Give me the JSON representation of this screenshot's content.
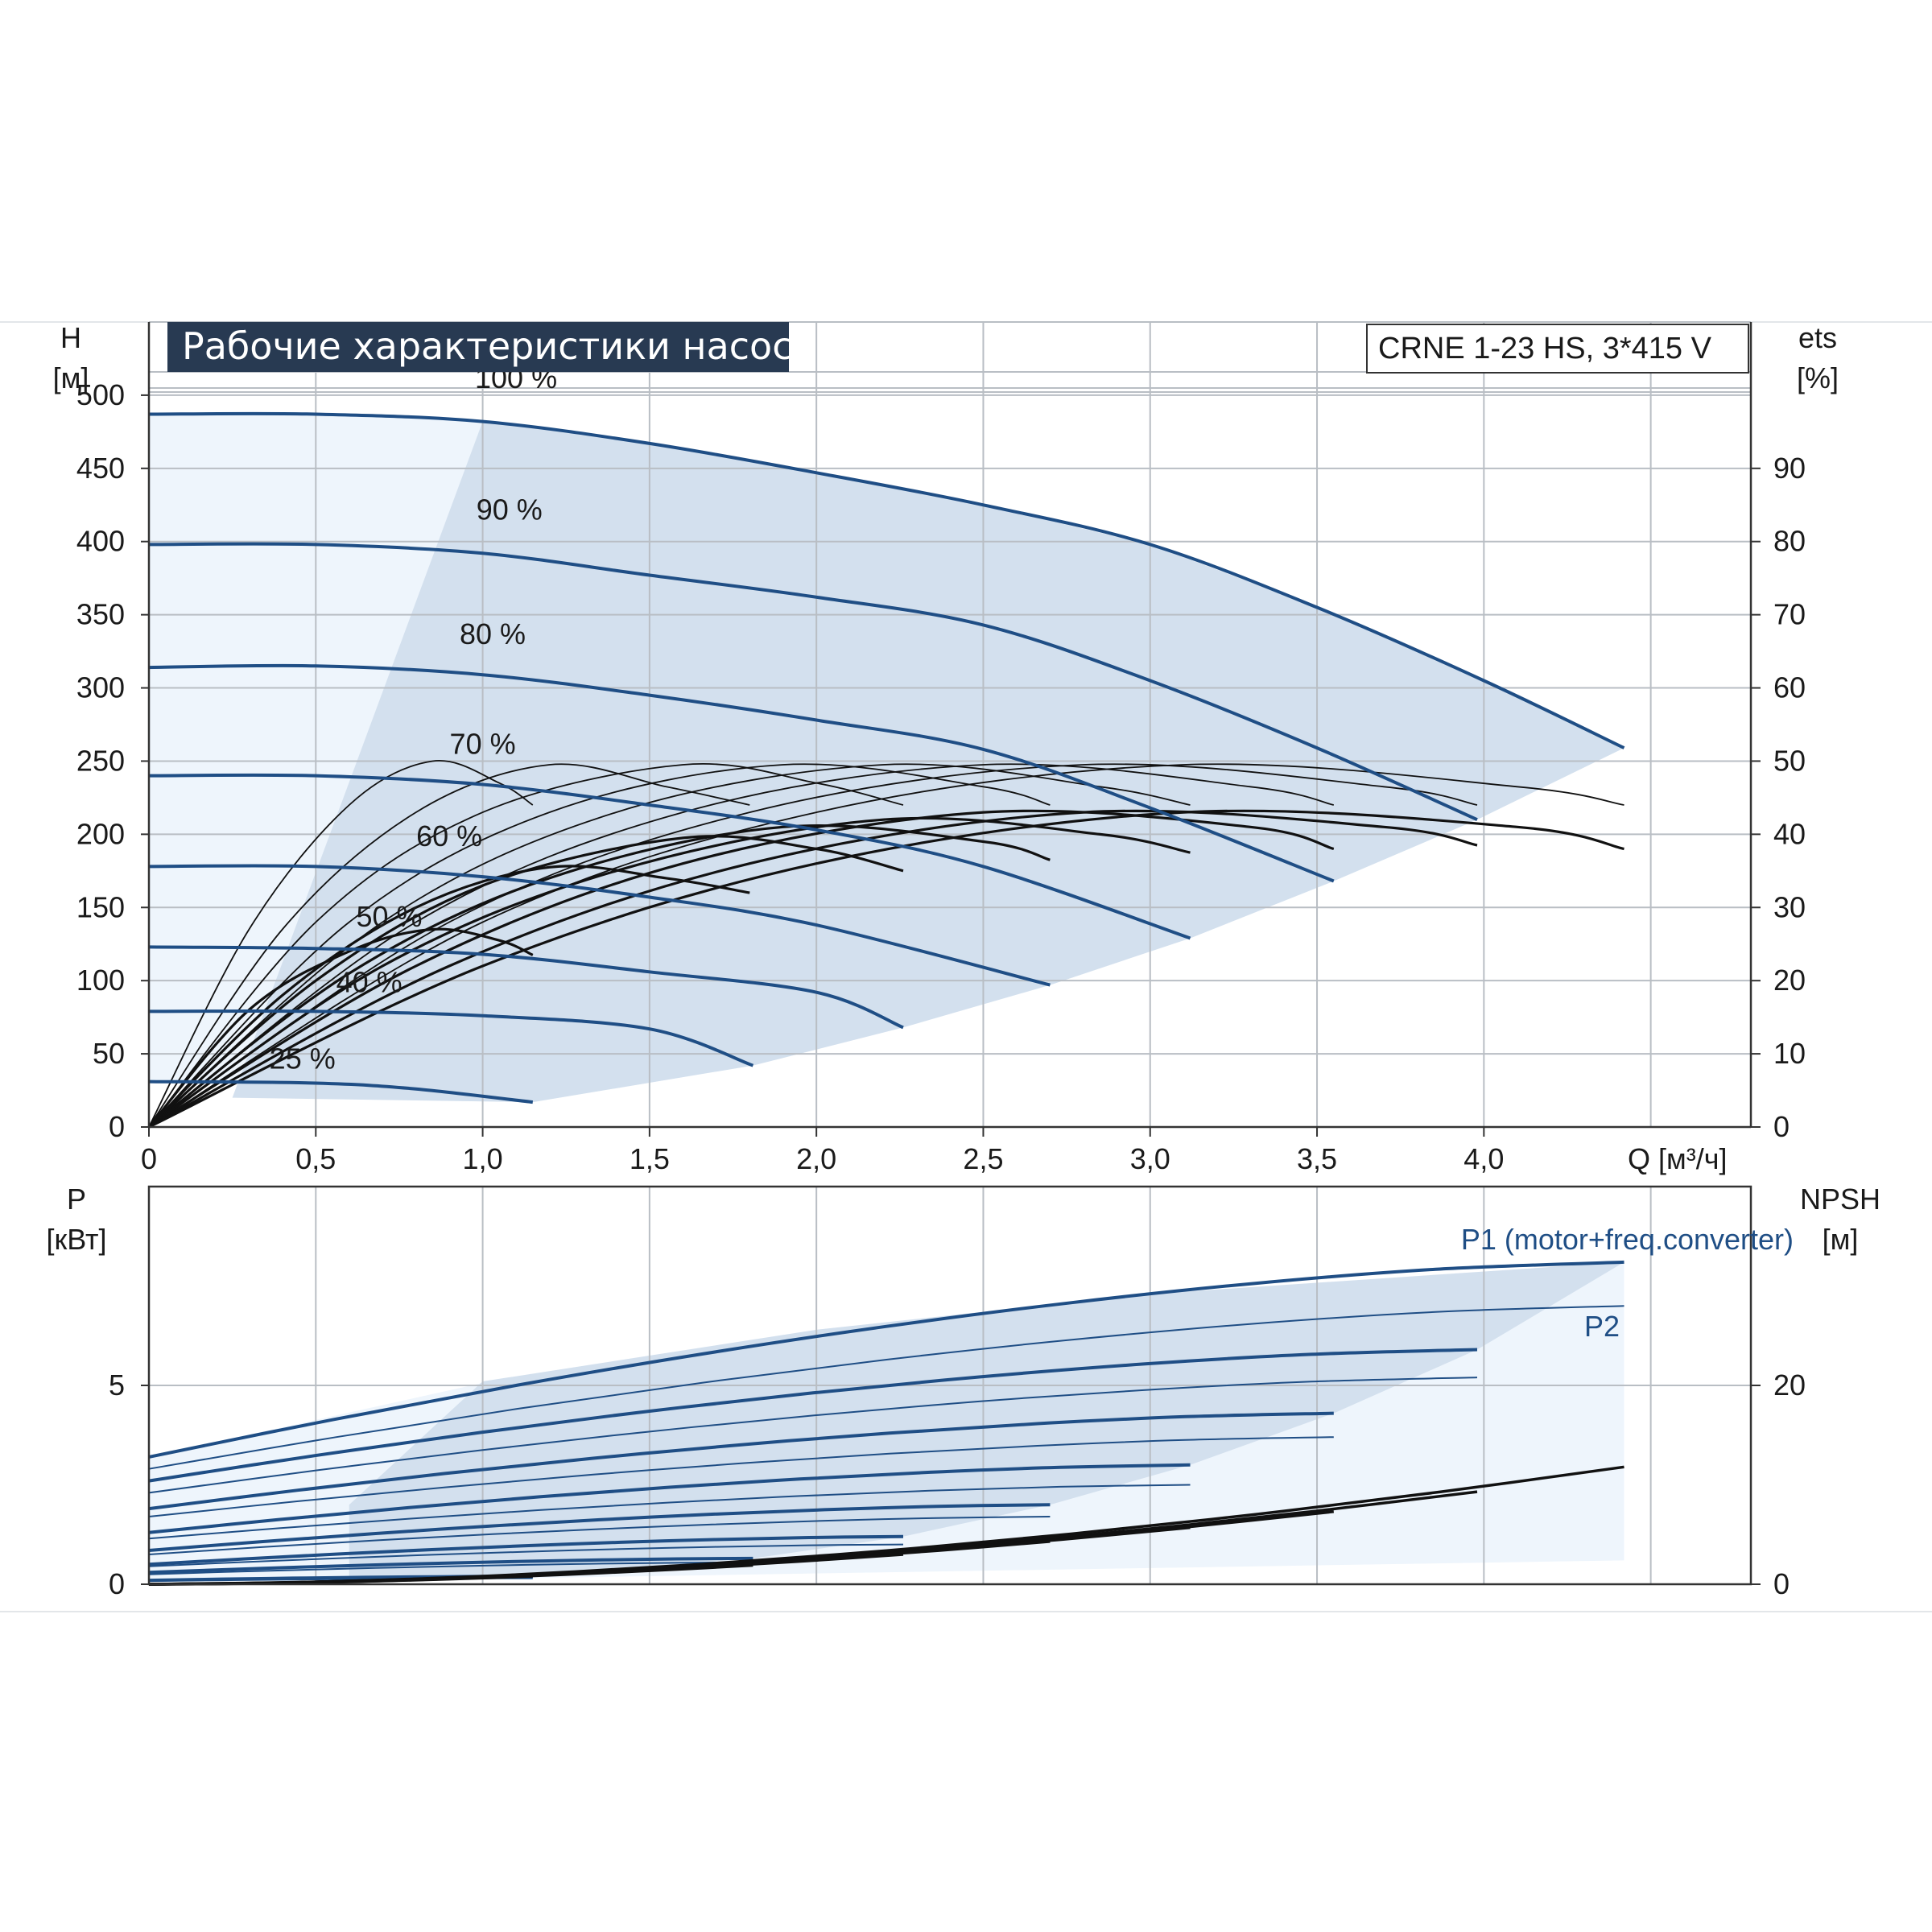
{
  "title": "Рабочие характеристики насоса",
  "model_label": "CRNE 1-23 HS, 3*415 V",
  "colors": {
    "curve": "#1f4e85",
    "eff": "#111111",
    "shade": "#d3e0ee",
    "shade_light": "#eef5fc",
    "grid": "#b9bec4",
    "title_bg": "#283a52"
  },
  "chart_data": [
    {
      "id": "head",
      "type": "line",
      "ylabel": "H",
      "yunit": "[м]",
      "y2label": "ets",
      "y2unit": "[%]",
      "xlabel": "Q [м³/ч]",
      "xlim": [
        0,
        4.8
      ],
      "ylim": [
        0,
        550
      ],
      "y2lim": [
        0,
        110
      ],
      "xticks": [
        "0",
        "0,5",
        "1,0",
        "1,5",
        "2,0",
        "2,5",
        "3,0",
        "3,5",
        "4,0"
      ],
      "xticks_values": [
        0,
        0.5,
        1.0,
        1.5,
        2.0,
        2.5,
        3.0,
        3.5,
        4.0
      ],
      "yticks": [
        0,
        50,
        100,
        150,
        200,
        250,
        300,
        350,
        400,
        450,
        500
      ],
      "y2ticks": [
        0,
        10,
        20,
        30,
        40,
        50,
        60,
        70,
        80,
        90
      ],
      "grid": true,
      "speed_curves": [
        {
          "label": "100 %",
          "label_at": [
            1.1,
            505
          ],
          "points": [
            [
              0,
              487
            ],
            [
              0.5,
              487
            ],
            [
              1.0,
              482
            ],
            [
              1.5,
              467
            ],
            [
              2.0,
              447
            ],
            [
              2.5,
              425
            ],
            [
              3.0,
              398
            ],
            [
              3.5,
              355
            ],
            [
              4.0,
              305
            ],
            [
              4.42,
              259
            ]
          ]
        },
        {
          "label": "90 %",
          "label_at": [
            1.08,
            415
          ],
          "points": [
            [
              0,
              398
            ],
            [
              0.5,
              398
            ],
            [
              1.0,
              392
            ],
            [
              1.5,
              377
            ],
            [
              2.0,
              362
            ],
            [
              2.5,
              343
            ],
            [
              3.0,
              305
            ],
            [
              3.5,
              259
            ],
            [
              3.98,
              210
            ]
          ]
        },
        {
          "label": "80 %",
          "label_at": [
            1.03,
            330
          ],
          "points": [
            [
              0,
              314
            ],
            [
              0.5,
              315
            ],
            [
              1.0,
              309
            ],
            [
              1.5,
              295
            ],
            [
              2.0,
              278
            ],
            [
              2.5,
              258
            ],
            [
              3.0,
              218
            ],
            [
              3.55,
              168
            ]
          ]
        },
        {
          "label": "70 %",
          "label_at": [
            1.0,
            255
          ],
          "points": [
            [
              0,
              240
            ],
            [
              0.5,
              240
            ],
            [
              1.0,
              234
            ],
            [
              1.5,
              220
            ],
            [
              2.0,
              203
            ],
            [
              2.5,
              178
            ],
            [
              3.12,
              129
            ]
          ]
        },
        {
          "label": "60 %",
          "label_at": [
            0.9,
            192
          ],
          "points": [
            [
              0,
              178
            ],
            [
              0.5,
              178
            ],
            [
              1.0,
              171
            ],
            [
              1.5,
              157
            ],
            [
              2.0,
              138
            ],
            [
              2.7,
              97
            ]
          ]
        },
        {
          "label": "50 %",
          "label_at": [
            0.72,
            137
          ],
          "points": [
            [
              0,
              123
            ],
            [
              0.5,
              122
            ],
            [
              1.0,
              118
            ],
            [
              1.5,
              106
            ],
            [
              2.0,
              92
            ],
            [
              2.26,
              68
            ]
          ]
        },
        {
          "label": "40 %",
          "label_at": [
            0.66,
            92
          ],
          "points": [
            [
              0,
              79
            ],
            [
              0.5,
              79
            ],
            [
              1.0,
              76
            ],
            [
              1.5,
              67
            ],
            [
              1.81,
              42
            ]
          ]
        },
        {
          "label": "25 %",
          "label_at": [
            0.46,
            40
          ],
          "points": [
            [
              0,
              31
            ],
            [
              0.5,
              30
            ],
            [
              0.8,
              26
            ],
            [
              1.15,
              17
            ]
          ]
        }
      ],
      "efficiency_curves": [
        {
          "eta_max": 50,
          "points": [
            [
              0,
              0
            ],
            [
              0.3,
              27
            ],
            [
              0.6,
              44
            ],
            [
              0.85,
              50
            ],
            [
              1.05,
              47
            ],
            [
              1.15,
              44
            ]
          ]
        },
        {
          "eta_max": 50,
          "points": [
            [
              0,
              0
            ],
            [
              0.4,
              27
            ],
            [
              0.8,
              43
            ],
            [
              1.2,
              49.5
            ],
            [
              1.55,
              46.5
            ],
            [
              1.8,
              44
            ]
          ]
        },
        {
          "eta_max": 50,
          "points": [
            [
              0,
              0
            ],
            [
              0.5,
              28
            ],
            [
              1.0,
              43
            ],
            [
              1.6,
              49.5
            ],
            [
              2.0,
              47
            ],
            [
              2.26,
              44
            ]
          ]
        },
        {
          "eta_max": 50,
          "points": [
            [
              0,
              0
            ],
            [
              0.6,
              28
            ],
            [
              1.2,
              43
            ],
            [
              1.9,
              49.5
            ],
            [
              2.5,
              46.5
            ],
            [
              2.7,
              44
            ]
          ]
        },
        {
          "eta_max": 50,
          "points": [
            [
              0,
              0
            ],
            [
              0.7,
              28
            ],
            [
              1.4,
              43
            ],
            [
              2.2,
              49.5
            ],
            [
              2.85,
              46.5
            ],
            [
              3.12,
              44
            ]
          ]
        },
        {
          "eta_max": 50,
          "points": [
            [
              0,
              0
            ],
            [
              0.8,
              28
            ],
            [
              1.6,
              43
            ],
            [
              2.5,
              49.5
            ],
            [
              3.3,
              46.5
            ],
            [
              3.55,
              44
            ]
          ]
        },
        {
          "eta_max": 50,
          "points": [
            [
              0,
              0
            ],
            [
              0.9,
              28
            ],
            [
              1.8,
              43
            ],
            [
              2.8,
              49.5
            ],
            [
              3.7,
              46.5
            ],
            [
              3.98,
              44
            ]
          ]
        },
        {
          "eta_max": 50,
          "points": [
            [
              0,
              0
            ],
            [
              1.0,
              28
            ],
            [
              2.0,
              43
            ],
            [
              3.1,
              49.5
            ],
            [
              4.1,
              46.5
            ],
            [
              4.42,
              44
            ]
          ]
        },
        {
          "eta_max": 27,
          "points": [
            [
              0,
              0
            ],
            [
              0.3,
              16
            ],
            [
              0.6,
              24
            ],
            [
              0.85,
              27
            ],
            [
              1.05,
              25.5
            ],
            [
              1.15,
              23.5
            ]
          ]
        },
        {
          "eta_max": 36,
          "points": [
            [
              0,
              0
            ],
            [
              0.4,
              18
            ],
            [
              0.8,
              30
            ],
            [
              1.2,
              35.5
            ],
            [
              1.55,
              34
            ],
            [
              1.8,
              32
            ]
          ]
        },
        {
          "eta_max": 40,
          "points": [
            [
              0,
              0
            ],
            [
              0.5,
              20
            ],
            [
              1.0,
              33
            ],
            [
              1.6,
              39.5
            ],
            [
              2.0,
              38
            ],
            [
              2.26,
              35
            ]
          ]
        },
        {
          "eta_max": 41,
          "points": [
            [
              0,
              0
            ],
            [
              0.6,
              21
            ],
            [
              1.2,
              34
            ],
            [
              1.9,
              41
            ],
            [
              2.5,
              39
            ],
            [
              2.7,
              36.5
            ]
          ]
        },
        {
          "eta_max": 42,
          "points": [
            [
              0,
              0
            ],
            [
              0.7,
              22
            ],
            [
              1.4,
              35
            ],
            [
              2.2,
              42
            ],
            [
              2.85,
              40
            ],
            [
              3.12,
              37.5
            ]
          ]
        },
        {
          "eta_max": 43,
          "points": [
            [
              0,
              0
            ],
            [
              0.8,
              22
            ],
            [
              1.6,
              36
            ],
            [
              2.5,
              43
            ],
            [
              3.3,
              41
            ],
            [
              3.55,
              38
            ]
          ]
        },
        {
          "eta_max": 43,
          "points": [
            [
              0,
              0
            ],
            [
              0.9,
              22
            ],
            [
              1.8,
              36
            ],
            [
              2.8,
              43
            ],
            [
              3.7,
              41
            ],
            [
              3.98,
              38.5
            ]
          ]
        },
        {
          "eta_max": 43,
          "points": [
            [
              0,
              0
            ],
            [
              1.0,
              22
            ],
            [
              2.0,
              36
            ],
            [
              3.1,
              43
            ],
            [
              4.1,
              41
            ],
            [
              4.42,
              38
            ]
          ]
        }
      ]
    },
    {
      "id": "power",
      "type": "line",
      "ylabel": "P",
      "yunit": "[кВт]",
      "y2label": "NPSH",
      "y2unit": "[м]",
      "xlim": [
        0,
        4.8
      ],
      "ylim": [
        0,
        10
      ],
      "y2lim": [
        0,
        40
      ],
      "yticks": [
        0,
        5
      ],
      "y2ticks": [
        0,
        20
      ],
      "grid": true,
      "series_labels": {
        "p1": "P1 (motor+freq.converter)",
        "p2": "P2"
      },
      "p1": [
        {
          "end": 4.42,
          "start_value": 3.2,
          "end_value": 8.1
        },
        {
          "end": 3.98,
          "start_value": 2.6,
          "end_value": 5.9
        },
        {
          "end": 3.55,
          "start_value": 1.9,
          "end_value": 4.3
        },
        {
          "end": 3.12,
          "start_value": 1.3,
          "end_value": 3.0
        },
        {
          "end": 2.7,
          "start_value": 0.85,
          "end_value": 2.0
        },
        {
          "end": 2.26,
          "start_value": 0.5,
          "end_value": 1.2
        },
        {
          "end": 1.81,
          "start_value": 0.3,
          "end_value": 0.65
        },
        {
          "end": 1.15,
          "start_value": 0.1,
          "end_value": 0.2
        }
      ],
      "p2": [
        {
          "end": 4.42,
          "start_value": 2.9,
          "end_value": 7.0
        },
        {
          "end": 3.98,
          "start_value": 2.3,
          "end_value": 5.2
        },
        {
          "end": 3.55,
          "start_value": 1.7,
          "end_value": 3.7
        },
        {
          "end": 3.12,
          "start_value": 1.15,
          "end_value": 2.5
        },
        {
          "end": 2.7,
          "start_value": 0.75,
          "end_value": 1.7
        },
        {
          "end": 2.26,
          "start_value": 0.45,
          "end_value": 1.0
        },
        {
          "end": 1.81,
          "start_value": 0.25,
          "end_value": 0.55
        },
        {
          "end": 1.15,
          "start_value": 0.08,
          "end_value": 0.15
        }
      ],
      "npsh": [
        {
          "end": 4.42,
          "end_value": 11.8
        },
        {
          "end": 3.98,
          "end_value": 9.3
        },
        {
          "end": 3.55,
          "end_value": 7.3
        },
        {
          "end": 3.12,
          "end_value": 5.7
        },
        {
          "end": 2.7,
          "end_value": 4.3
        },
        {
          "end": 2.26,
          "end_value": 3.0
        },
        {
          "end": 1.81,
          "end_value": 1.9
        },
        {
          "end": 1.15,
          "end_value": 0.8
        }
      ]
    }
  ]
}
